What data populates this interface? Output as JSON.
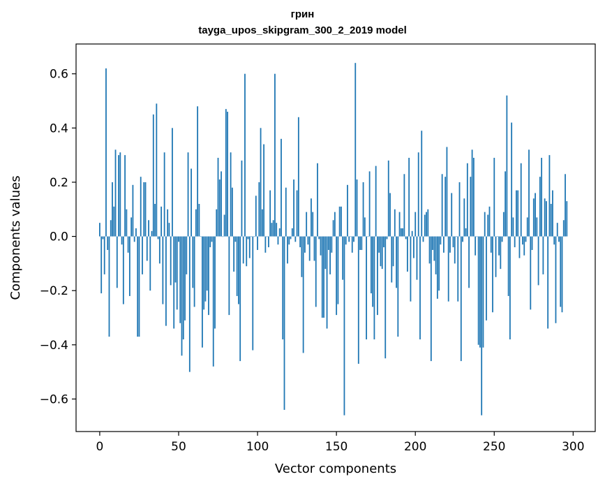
{
  "chart_data": {
    "type": "bar",
    "title": "грин",
    "subtitle": "tayga_upos_skipgram_300_2_2019 model",
    "xlabel": "Vector components",
    "ylabel": "Components values",
    "xlim": [
      -15,
      314
    ],
    "ylim": [
      -0.72,
      0.71
    ],
    "xticks": [
      0,
      50,
      100,
      150,
      200,
      250,
      300
    ],
    "yticks": [
      -0.6,
      -0.4,
      -0.2,
      0.0,
      0.2,
      0.4,
      0.6
    ],
    "xtick_labels": [
      "0",
      "50",
      "100",
      "150",
      "200",
      "250",
      "300"
    ],
    "ytick_labels": [
      "−0.6",
      "−0.4",
      "−0.2",
      "0.0",
      "0.2",
      "0.4",
      "0.6"
    ],
    "bar_color": "#1f77b4",
    "values": [
      0.05,
      -0.21,
      -0.01,
      -0.14,
      0.62,
      -0.05,
      -0.37,
      0.06,
      0.2,
      0.11,
      0.32,
      -0.19,
      0.3,
      0.31,
      -0.03,
      -0.25,
      0.3,
      0.1,
      -0.06,
      -0.22,
      0.07,
      0.19,
      -0.02,
      0.03,
      -0.37,
      -0.37,
      0.22,
      -0.14,
      0.2,
      0.2,
      -0.09,
      0.06,
      -0.2,
      0.02,
      0.45,
      0.12,
      0.49,
      -0.01,
      -0.1,
      0.11,
      -0.25,
      0.31,
      -0.33,
      0.1,
      0.05,
      -0.18,
      0.4,
      -0.34,
      -0.17,
      -0.27,
      -0.02,
      -0.32,
      -0.44,
      -0.38,
      -0.31,
      -0.14,
      0.31,
      -0.5,
      0.25,
      -0.19,
      -0.26,
      0.1,
      0.48,
      0.12,
      0.0,
      -0.41,
      -0.27,
      -0.24,
      -0.2,
      -0.29,
      -0.04,
      -0.02,
      -0.48,
      -0.34,
      0.1,
      0.29,
      0.21,
      0.24,
      0.0,
      0.08,
      0.47,
      0.46,
      -0.29,
      0.31,
      0.18,
      -0.13,
      -0.02,
      -0.22,
      -0.25,
      -0.46,
      0.28,
      -0.1,
      0.6,
      -0.11,
      -0.01,
      -0.08,
      0.0,
      -0.42,
      0.0,
      0.15,
      -0.05,
      0.2,
      0.4,
      0.1,
      0.34,
      -0.06,
      0.0,
      -0.04,
      0.17,
      0.05,
      0.06,
      0.6,
      0.05,
      -0.03,
      0.03,
      0.36,
      -0.38,
      -0.64,
      0.18,
      -0.1,
      -0.03,
      -0.01,
      0.03,
      0.21,
      -0.02,
      0.17,
      0.44,
      -0.04,
      -0.15,
      -0.43,
      -0.06,
      0.09,
      -0.03,
      -0.09,
      0.14,
      0.09,
      -0.09,
      -0.26,
      0.27,
      -0.01,
      -0.07,
      -0.3,
      -0.3,
      -0.12,
      -0.34,
      -0.05,
      -0.14,
      -0.06,
      0.06,
      0.09,
      -0.29,
      -0.25,
      0.11,
      0.11,
      -0.16,
      -0.66,
      -0.03,
      0.19,
      -0.02,
      0.0,
      -0.06,
      -0.02,
      0.64,
      0.21,
      -0.47,
      -0.05,
      -0.05,
      0.2,
      0.07,
      -0.38,
      0.0,
      0.24,
      -0.21,
      -0.26,
      -0.38,
      0.26,
      -0.29,
      -0.06,
      -0.11,
      -0.12,
      -0.04,
      -0.45,
      -0.01,
      0.28,
      0.16,
      -0.17,
      -0.11,
      0.1,
      -0.19,
      -0.37,
      0.09,
      0.03,
      0.03,
      0.23,
      -0.01,
      -0.13,
      0.29,
      -0.24,
      0.02,
      -0.08,
      0.09,
      -0.16,
      0.31,
      -0.38,
      0.39,
      -0.02,
      0.08,
      0.09,
      0.1,
      -0.1,
      -0.46,
      -0.05,
      -0.09,
      -0.14,
      -0.23,
      -0.2,
      -0.03,
      0.23,
      -0.06,
      0.22,
      0.33,
      -0.24,
      -0.06,
      0.16,
      -0.04,
      -0.1,
      0.0,
      -0.24,
      0.2,
      -0.46,
      -0.02,
      0.14,
      0.03,
      0.27,
      -0.19,
      0.22,
      0.32,
      0.29,
      -0.07,
      0.0,
      -0.4,
      -0.41,
      -0.66,
      -0.41,
      0.09,
      -0.31,
      0.08,
      0.11,
      -0.06,
      -0.28,
      0.29,
      -0.15,
      0.0,
      -0.07,
      -0.12,
      -0.02,
      0.09,
      0.24,
      0.52,
      -0.22,
      -0.38,
      0.42,
      0.07,
      -0.04,
      0.17,
      0.17,
      -0.08,
      0.27,
      -0.03,
      -0.07,
      -0.02,
      0.07,
      0.32,
      -0.27,
      -0.05,
      0.14,
      0.16,
      0.07,
      -0.18,
      0.22,
      0.29,
      -0.14,
      0.14,
      0.13,
      -0.34,
      0.3,
      0.12,
      0.17,
      -0.03,
      -0.32,
      0.05,
      -0.02,
      -0.26,
      -0.28,
      0.06,
      0.23,
      0.13
    ]
  }
}
